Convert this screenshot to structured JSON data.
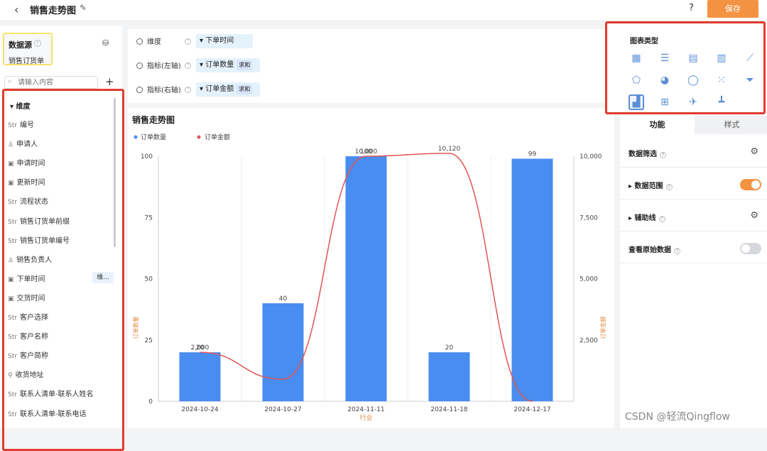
{
  "header": {
    "back_label": "‹",
    "title": "销售走势图",
    "help_label": "?",
    "save_label": "保存"
  },
  "datasource": {
    "title": "数据源",
    "name": "销售订货单",
    "search_placeholder": "请输入内容",
    "add_label": "+"
  },
  "fields": {
    "group_label": "维度",
    "items": [
      {
        "type": "Str",
        "label": "编号"
      },
      {
        "type": "user",
        "label": "申请人"
      },
      {
        "type": "date",
        "label": "申请时间"
      },
      {
        "type": "date",
        "label": "更新时间"
      },
      {
        "type": "Str",
        "label": "流程状态"
      },
      {
        "type": "Str",
        "label": "销售订货单前缀"
      },
      {
        "type": "Str",
        "label": "销售订货单编号"
      },
      {
        "type": "user",
        "label": "销售负责人"
      },
      {
        "type": "date",
        "label": "下单时间",
        "tag": "维..."
      },
      {
        "type": "date",
        "label": "交货时间"
      },
      {
        "type": "Str",
        "label": "客户选择"
      },
      {
        "type": "Str",
        "label": "客户名称"
      },
      {
        "type": "Str",
        "label": "客户简称"
      },
      {
        "type": "addr",
        "label": "收货地址"
      },
      {
        "type": "Str",
        "label": "联系人清单-联系人姓名"
      },
      {
        "type": "Str",
        "label": "联系人清单-联系电话"
      }
    ]
  },
  "config": {
    "dimension": {
      "label": "维度",
      "value": "下单时间"
    },
    "left_axis": {
      "label": "指标(左轴)",
      "value": "订单数量",
      "agg": "求和"
    },
    "right_axis": {
      "label": "指标(右轴)",
      "value": "订单金额",
      "agg": "求和"
    }
  },
  "chart_title": "销售走势图",
  "chart_data": {
    "type": "bar+line",
    "categories": [
      "2024-10-24",
      "2024-10-27",
      "2024-11-11",
      "2024-11-18",
      "2024-12-17"
    ],
    "series": [
      {
        "name": "订单数量",
        "type": "bar",
        "axis": "left",
        "color": "#4a8df0",
        "values": [
          20,
          40,
          100,
          20,
          99
        ],
        "labels": [
          "20",
          "40",
          "100",
          "20",
          "99"
        ]
      },
      {
        "name": "订单金额",
        "type": "line",
        "axis": "right",
        "color": "#e05555",
        "values": [
          2000,
          900,
          10000,
          10120,
          0
        ],
        "labels": [
          "2,000",
          "",
          "10,000",
          "10,120",
          ""
        ]
      }
    ],
    "left_axis": {
      "label": "订单数量",
      "ticks": [
        "0",
        "25",
        "50",
        "75",
        "100"
      ],
      "range": [
        0,
        100
      ]
    },
    "right_axis": {
      "label": "订单金额",
      "ticks": [
        "2,500",
        "5,000",
        "7,500",
        "10,000"
      ],
      "range": [
        0,
        10000
      ]
    },
    "xlabel": "行业",
    "legend_placement": "top-left"
  },
  "panel": {
    "types_title": "图表类型",
    "type_icons": [
      "table-icon",
      "list-icon",
      "hbar-icon",
      "bar-icon",
      "line-icon",
      "radar-icon",
      "pie-icon",
      "donut-icon",
      "scatter-icon",
      "funnel-icon",
      "combo-icon",
      "number-icon",
      "map-icon",
      "gantt-icon"
    ],
    "tab_function": "功能",
    "tab_style": "样式",
    "options": [
      {
        "label": "数据筛选",
        "control": "gear"
      },
      {
        "label": "数据范围",
        "control": "toggle",
        "on": true
      },
      {
        "label": "辅助线",
        "control": "gear"
      },
      {
        "label": "查看原始数据",
        "control": "toggle",
        "on": false
      }
    ],
    "accent": "#f39342"
  },
  "watermark": "CSDN @轻流Qingflow"
}
